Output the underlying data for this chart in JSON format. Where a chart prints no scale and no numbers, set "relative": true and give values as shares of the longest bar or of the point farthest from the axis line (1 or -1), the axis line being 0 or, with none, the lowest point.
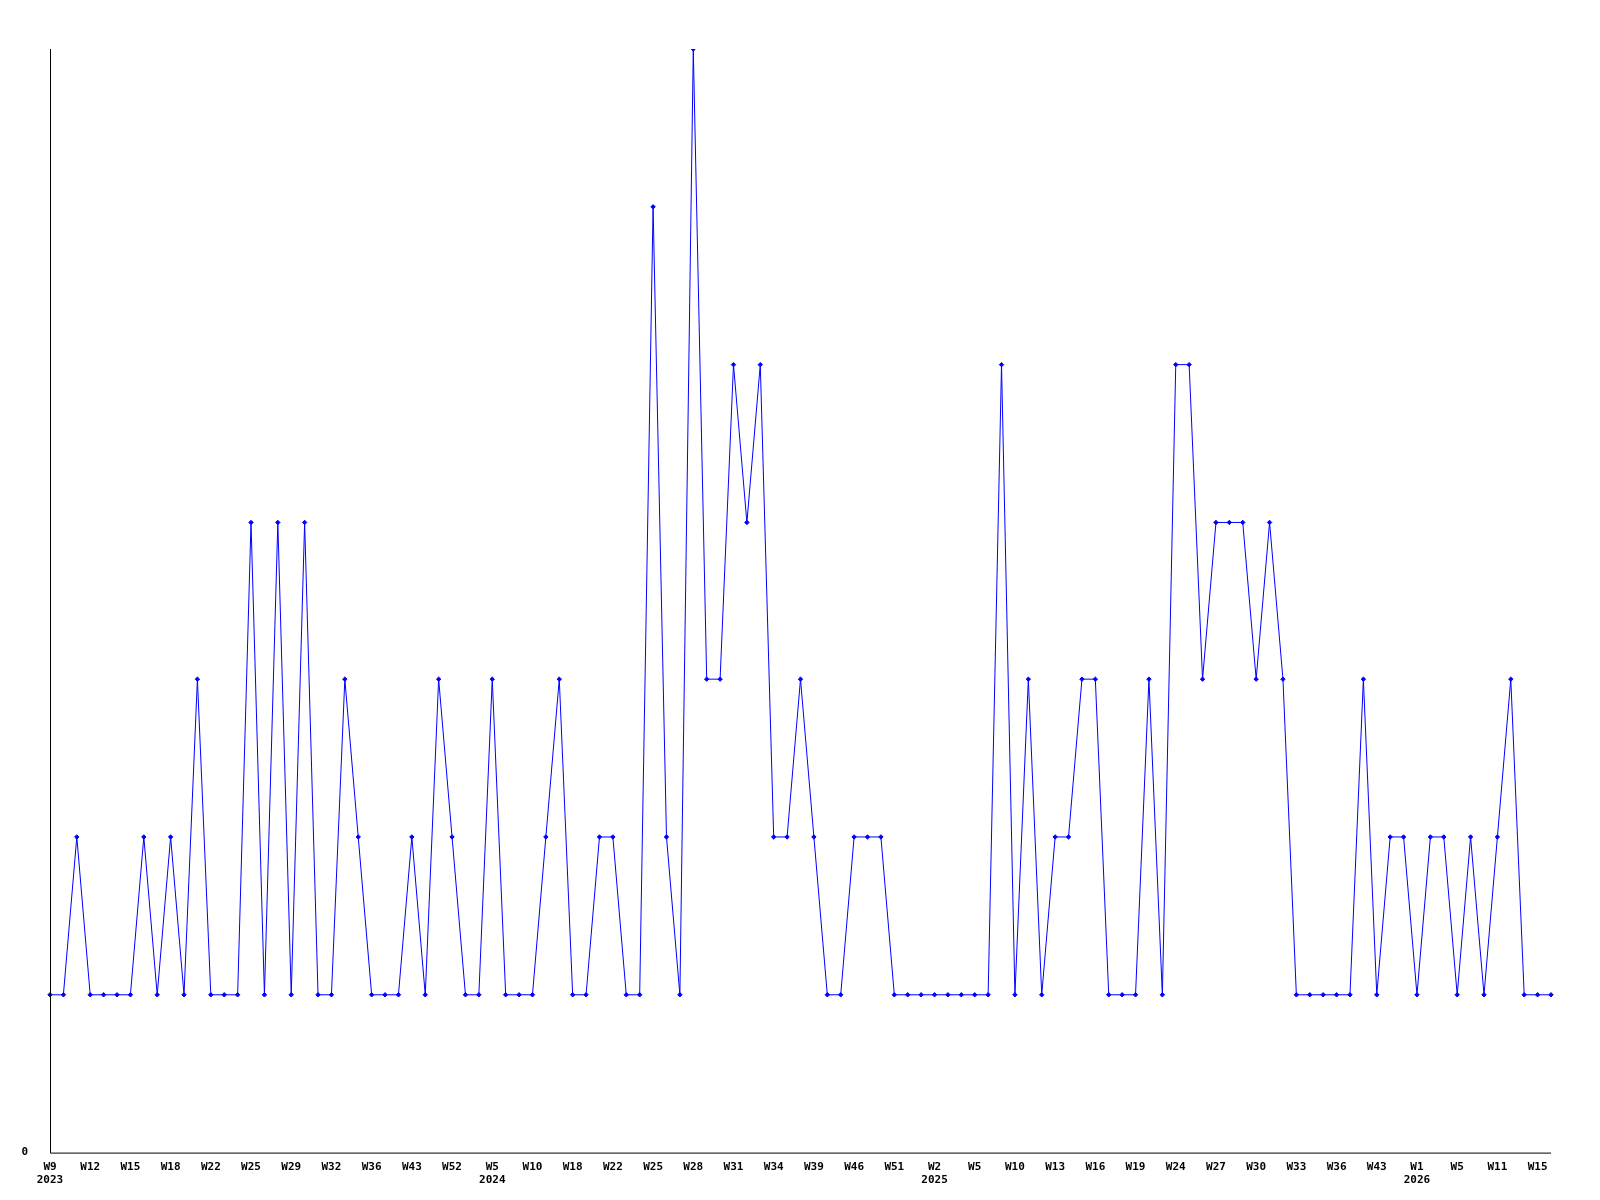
{
  "chart_data": {
    "type": "line",
    "relative": true,
    "categories": [
      "W9\n2023",
      null,
      null,
      "W12",
      null,
      null,
      "W15",
      null,
      null,
      "W18",
      null,
      null,
      "W22",
      null,
      null,
      "W25",
      null,
      null,
      "W29",
      null,
      null,
      "W32",
      null,
      null,
      "W36",
      null,
      null,
      "W43",
      null,
      null,
      "W52",
      null,
      null,
      "W5\n2024",
      null,
      null,
      "W10",
      null,
      null,
      "W18",
      null,
      null,
      "W22",
      null,
      null,
      "W25",
      null,
      null,
      "W28",
      null,
      null,
      "W31",
      null,
      null,
      "W34",
      null,
      null,
      "W39",
      null,
      null,
      "W46",
      null,
      null,
      "W51",
      null,
      null,
      "W2\n2025",
      null,
      null,
      "W5",
      null,
      null,
      "W10",
      null,
      null,
      "W13",
      null,
      null,
      "W16",
      null,
      null,
      "W19",
      null,
      null,
      "W24",
      null,
      null,
      "W27",
      null,
      null,
      "W30",
      null,
      null,
      "W33",
      null,
      null,
      "W36",
      null,
      null,
      "W43",
      null,
      null,
      "W1\n2026",
      null,
      null,
      "W5",
      null,
      null,
      "W11",
      null,
      null,
      "W15",
      null
    ],
    "series": [
      {
        "color": "#0000ff",
        "values": [
          0.143,
          0.143,
          0.286,
          0.143,
          0.143,
          0.143,
          0.143,
          0.286,
          0.143,
          0.286,
          0.143,
          0.429,
          0.143,
          0.143,
          0.143,
          0.571,
          0.143,
          0.571,
          0.143,
          0.571,
          0.143,
          0.143,
          0.429,
          0.286,
          0.143,
          0.143,
          0.143,
          0.286,
          0.143,
          0.429,
          0.286,
          0.143,
          0.143,
          0.429,
          0.143,
          0.143,
          0.143,
          0.286,
          0.429,
          0.143,
          0.143,
          0.286,
          0.286,
          0.143,
          0.143,
          0.857,
          0.286,
          0.143,
          1,
          0.429,
          0.429,
          0.714,
          0.571,
          0.714,
          0.286,
          0.286,
          0.429,
          0.286,
          0.143,
          0.143,
          0.286,
          0.286,
          0.286,
          0.143,
          0.143,
          0.143,
          0.143,
          0.143,
          0.143,
          0.143,
          0.143,
          0.714,
          0.143,
          0.429,
          0.143,
          0.286,
          0.286,
          0.429,
          0.429,
          0.143,
          0.143,
          0.143,
          0.429,
          0.143,
          0.714,
          0.714,
          0.429,
          0.571,
          0.571,
          0.571,
          0.429,
          0.571,
          0.429,
          0.143,
          0.143,
          0.143,
          0.143,
          0.143,
          0.429,
          0.143,
          0.286,
          0.286,
          0.143,
          0.286,
          0.286,
          0.143,
          0.286,
          0.143,
          0.286,
          0.429,
          0.143,
          0.143,
          0.143
        ]
      }
    ],
    "annotations": [
      "0"
    ],
    "marker": "diamond",
    "line_style": "solid",
    "grid": false,
    "legend": false
  }
}
